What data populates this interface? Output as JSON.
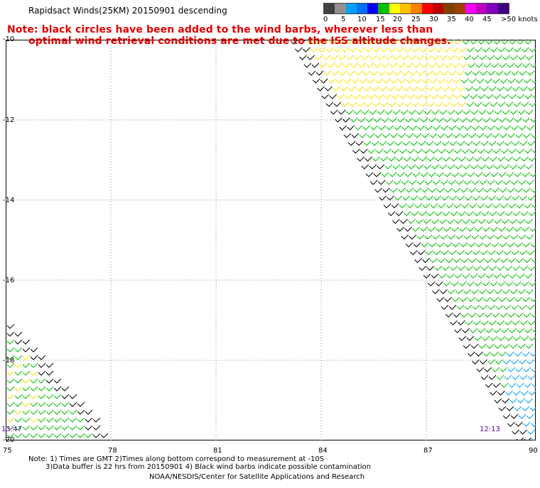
{
  "header": {
    "title": "Rapidsact Winds(25KM) 20150901 descending"
  },
  "notice": {
    "line1": "Note: black circles have been added to the wind barbs, wherever less than",
    "line2": "optimal wind retrieval conditions are met due to the ISS altitude changes."
  },
  "legend": {
    "colors": [
      "#404040",
      "#909090",
      "#00a0ff",
      "#0070ff",
      "#0000ff",
      "#00c000",
      "#ffff00",
      "#ffc000",
      "#ff8000",
      "#ff0000",
      "#c00000",
      "#804000",
      "#a04000",
      "#ff00ff",
      "#c000c0",
      "#8000c0",
      "#400080"
    ],
    "labels": [
      "0",
      "5",
      "10",
      "15",
      "20",
      "25",
      "30",
      "35",
      "40",
      "45",
      ">50 knots"
    ]
  },
  "axes": {
    "lat_labels": [
      "-10",
      "-12",
      "-14",
      "-16",
      "-18",
      "-20"
    ],
    "lon_labels": [
      "75",
      "78",
      "81",
      "84",
      "87",
      "90"
    ]
  },
  "times": {
    "left": "13:47",
    "right": "12:13"
  },
  "footer": {
    "line1": "Note: 1) Times are GMT 2)Times along bottom correspond to measurement at -10S",
    "line2": "3)Data buffer is 22 hrs from 20150901 4) Black wind barbs indicate possible contamination",
    "line3": "NOAA/NESDIS/Center for Satellite Applications and Research"
  }
}
